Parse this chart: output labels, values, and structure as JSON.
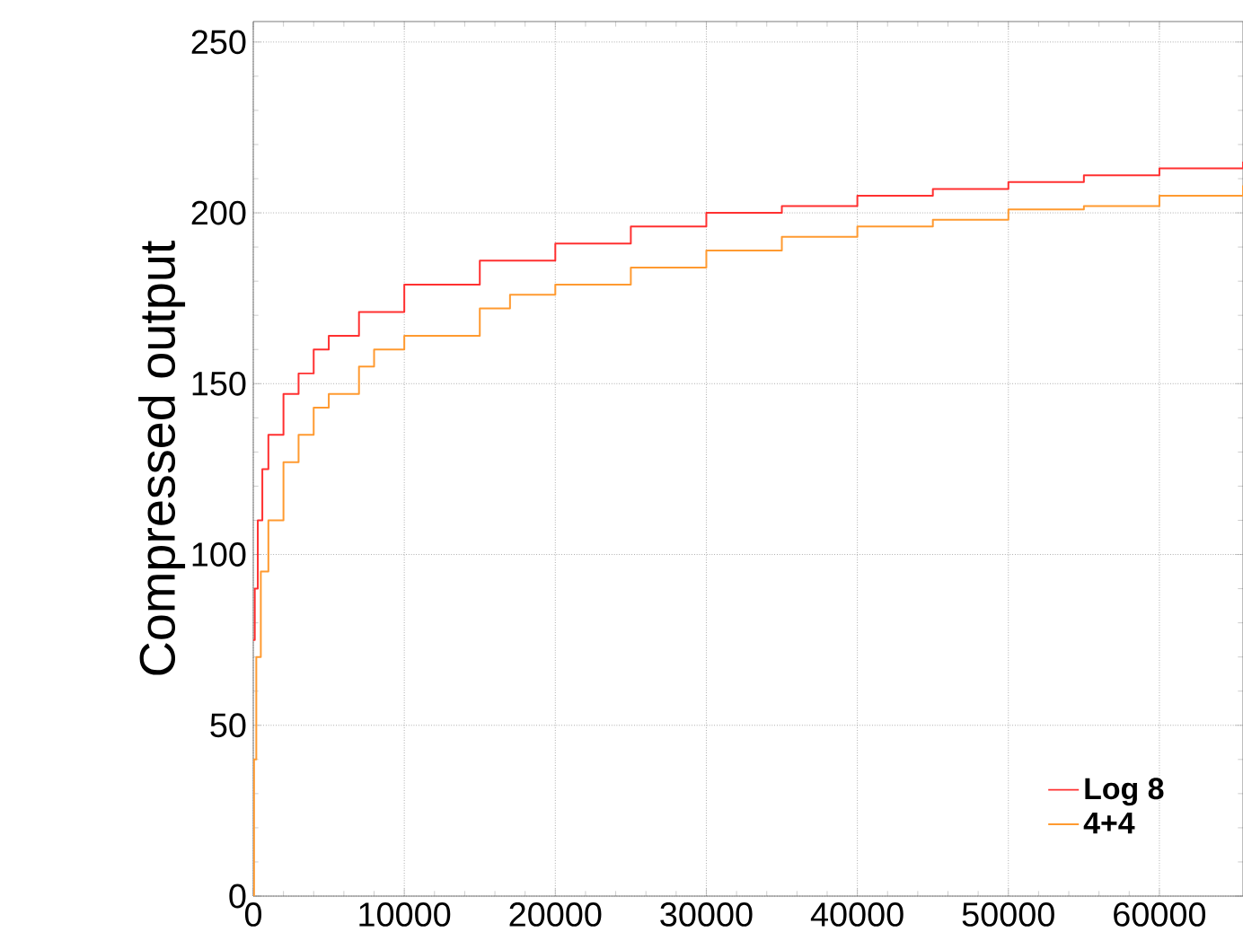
{
  "chart_data": {
    "type": "step",
    "ylabel": "Compressed output",
    "xlim": [
      0,
      65536
    ],
    "ylim": [
      0,
      256
    ],
    "xticks": [
      0,
      10000,
      20000,
      30000,
      40000,
      50000,
      60000
    ],
    "yticks": [
      0,
      50,
      100,
      150,
      200,
      250
    ],
    "grid": true,
    "legend": "bottom right",
    "series": [
      {
        "name": "Log 8",
        "color": "#ff3030",
        "x": [
          0,
          100,
          300,
          600,
          1000,
          2000,
          3000,
          4000,
          5000,
          7000,
          10000,
          15000,
          20000,
          25000,
          30000,
          35000,
          40000,
          45000,
          50000,
          55000,
          60000,
          65536
        ],
        "values": [
          75,
          90,
          110,
          125,
          135,
          147,
          153,
          160,
          164,
          171,
          179,
          186,
          191,
          196,
          200,
          202,
          205,
          207,
          209,
          211,
          213,
          215
        ]
      },
      {
        "name": "4+4",
        "color": "#ff9a30",
        "x": [
          0,
          50,
          200,
          500,
          1000,
          2000,
          3000,
          4000,
          5000,
          7000,
          8000,
          10000,
          15000,
          17000,
          20000,
          25000,
          30000,
          35000,
          40000,
          45000,
          50000,
          55000,
          60000,
          65536
        ],
        "values": [
          0,
          40,
          70,
          95,
          110,
          127,
          135,
          143,
          147,
          155,
          160,
          164,
          172,
          176,
          179,
          184,
          189,
          193,
          196,
          198,
          201,
          202,
          205,
          208
        ]
      }
    ]
  }
}
